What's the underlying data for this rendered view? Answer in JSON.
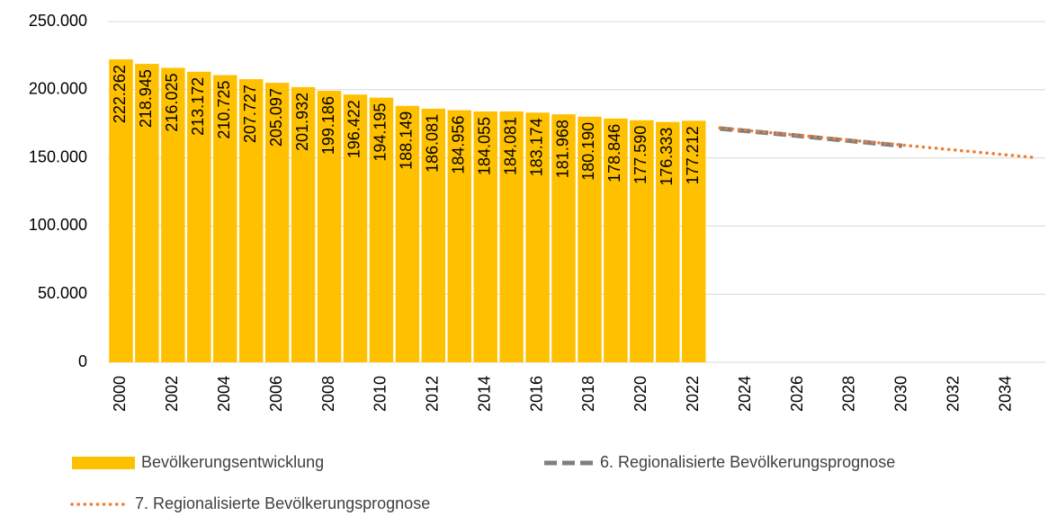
{
  "chart_data": {
    "type": "bar",
    "categories": [
      "2000",
      null,
      "2002",
      null,
      "2004",
      null,
      "2006",
      null,
      "2008",
      null,
      "2010",
      null,
      "2012",
      null,
      "2014",
      null,
      "2016",
      null,
      "2018",
      null,
      "2020",
      null,
      "2022",
      null,
      "2024",
      null,
      "2026",
      null,
      "2028",
      null,
      "2030",
      null,
      "2032",
      null,
      "2034",
      null
    ],
    "series": [
      {
        "name": "Bevölkerungsentwicklung",
        "type": "bar",
        "color": "#ffc000",
        "values": [
          222262,
          218945,
          216025,
          213172,
          210725,
          207727,
          205097,
          201932,
          199186,
          196422,
          194195,
          188149,
          186081,
          184956,
          184055,
          184081,
          183174,
          181968,
          180190,
          178846,
          177590,
          176333,
          177212,
          null,
          null,
          null,
          null,
          null,
          null,
          null,
          null,
          null,
          null,
          null,
          null,
          null
        ],
        "value_labels": [
          "222.262",
          "218.945",
          "216.025",
          "213.172",
          "210.725",
          "207.727",
          "205.097",
          "201.932",
          "199.186",
          "196.422",
          "194.195",
          "188.149",
          "186.081",
          "184.956",
          "184.055",
          "184.081",
          "183.174",
          "181.968",
          "180.190",
          "178.846",
          "177.590",
          "176.333",
          "177.212",
          null,
          null,
          null,
          null,
          null,
          null,
          null,
          null,
          null,
          null,
          null,
          null,
          null
        ]
      },
      {
        "name": "6. Regionalisierte Bevölkerungsprognose",
        "type": "line",
        "style": "dashed",
        "color": "#7f7f7f",
        "values": [
          null,
          null,
          null,
          null,
          null,
          null,
          null,
          null,
          null,
          null,
          null,
          null,
          null,
          null,
          null,
          null,
          null,
          null,
          null,
          null,
          null,
          null,
          null,
          171500,
          169800,
          168000,
          166200,
          164300,
          162500,
          160700,
          158800,
          null,
          null,
          null,
          null,
          null
        ]
      },
      {
        "name": "7. Regionalisierte Bevölkerungsprognose",
        "type": "line",
        "style": "dotted",
        "color": "#ed7d31",
        "values": [
          null,
          null,
          null,
          null,
          null,
          null,
          null,
          null,
          null,
          null,
          null,
          null,
          null,
          null,
          null,
          null,
          null,
          null,
          null,
          null,
          null,
          null,
          null,
          172000,
          170200,
          168400,
          166600,
          164800,
          163000,
          161200,
          159400,
          157600,
          155800,
          154000,
          152200,
          150400
        ]
      }
    ],
    "ylim": [
      0,
      250000
    ],
    "yticks": [
      0,
      {
        "value": 50000,
        "label": "50.000"
      },
      {
        "value": 100000,
        "label": "100.000"
      },
      {
        "value": 150000,
        "label": "150.000"
      },
      {
        "value": 200000,
        "label": "200.000"
      },
      {
        "value": 250000,
        "label": "250.000"
      }
    ],
    "grid": true
  }
}
